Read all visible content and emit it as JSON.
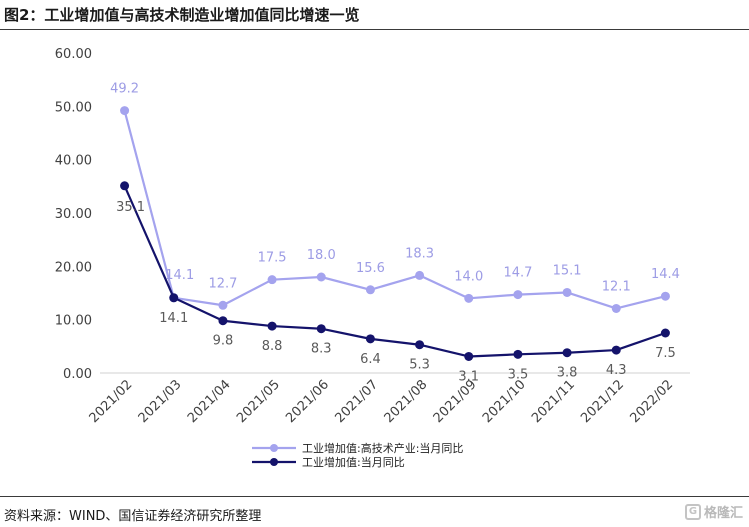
{
  "figure": {
    "title": "图2：工业增加值与高技术制造业增加值同比增速一览",
    "source": "资料来源：WIND、国信证券经济研究所整理",
    "watermark": "格隆汇"
  },
  "colors": {
    "series_high_tech": "#a4a3ee",
    "series_industrial": "#14136b",
    "label_high_tech": "#9d9ce5",
    "label_industrial": "#5a5a5a",
    "axis": "#d0d0d0"
  },
  "chart_data": {
    "type": "line",
    "categories": [
      "2021/02",
      "2021/03",
      "2021/04",
      "2021/05",
      "2021/06",
      "2021/07",
      "2021/08",
      "2021/09",
      "2021/10",
      "2021/11",
      "2021/12",
      "2022/02"
    ],
    "ylim": [
      0,
      60
    ],
    "yticks": [
      "0.00",
      "10.00",
      "20.00",
      "30.00",
      "40.00",
      "50.00",
      "60.00"
    ],
    "grid": false,
    "legend_position": "bottom",
    "series": [
      {
        "name": "工业增加值:高技术产业:当月同比",
        "values": [
          49.2,
          14.1,
          12.7,
          17.5,
          18.0,
          15.6,
          18.3,
          14.0,
          14.7,
          15.1,
          12.1,
          14.4
        ],
        "labels": [
          "49.2",
          "14.1",
          "12.7",
          "17.5",
          "18.0",
          "15.6",
          "18.3",
          "14.0",
          "14.7",
          "15.1",
          "12.1",
          "14.4"
        ]
      },
      {
        "name": "工业增加值:当月同比",
        "values": [
          35.1,
          14.1,
          9.8,
          8.8,
          8.3,
          6.4,
          5.3,
          3.1,
          3.5,
          3.8,
          4.3,
          7.5
        ],
        "labels": [
          "35.1",
          "14.1",
          "9.8",
          "8.8",
          "8.3",
          "6.4",
          "5.3",
          "3.1",
          "3.5",
          "3.8",
          "4.3",
          "7.5"
        ]
      }
    ]
  }
}
